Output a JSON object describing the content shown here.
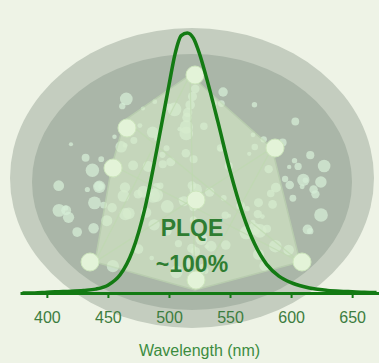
{
  "chart_data": {
    "type": "line",
    "xlabel": "Wavelength (nm)",
    "annotations": [
      "PLQE",
      "~100%"
    ],
    "x": [
      380,
      390,
      400,
      410,
      420,
      430,
      440,
      450,
      460,
      470,
      480,
      490,
      500,
      505,
      510,
      515,
      520,
      525,
      530,
      540,
      550,
      560,
      570,
      580,
      590,
      600,
      610,
      620,
      630,
      640,
      650,
      660,
      670
    ],
    "values": [
      0.0,
      0.0,
      0.003,
      0.005,
      0.007,
      0.01,
      0.015,
      0.03,
      0.07,
      0.16,
      0.32,
      0.55,
      0.8,
      0.92,
      0.99,
      1.0,
      0.98,
      0.92,
      0.84,
      0.66,
      0.47,
      0.31,
      0.19,
      0.11,
      0.065,
      0.04,
      0.025,
      0.015,
      0.01,
      0.007,
      0.005,
      0.003,
      0.002
    ],
    "color": "#137a13",
    "xlim": [
      378,
      672
    ],
    "xticks": [
      400,
      450,
      500,
      550,
      600,
      650
    ],
    "ylim": [
      0,
      1.05
    ],
    "yticks": [],
    "tick_labels": "x"
  }
}
